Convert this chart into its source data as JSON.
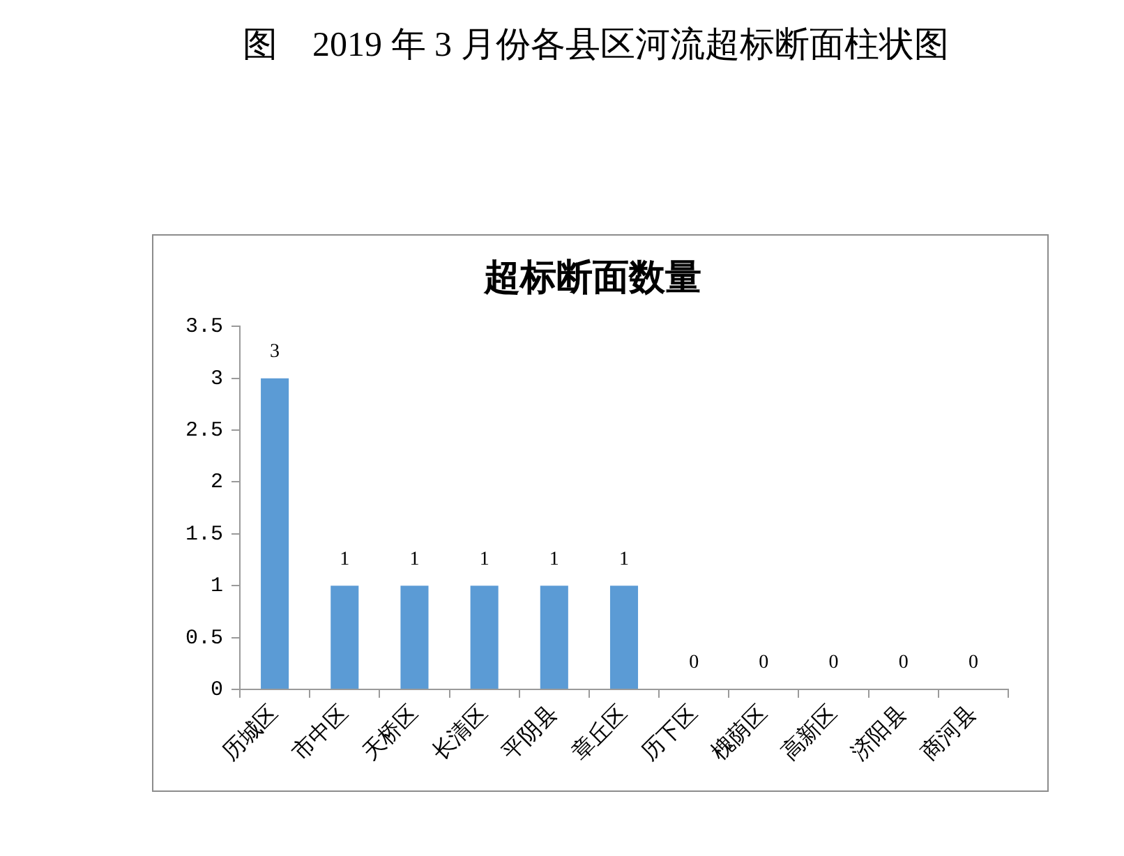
{
  "chart_data": {
    "type": "bar",
    "title": "超标断面数量",
    "annotations": [
      "图　2019 年 3 月份各县区河流超标断面柱状图"
    ],
    "categories": [
      "历城区",
      "市中区",
      "天桥区",
      "长清区",
      "平阴县",
      "章丘区",
      "历下区",
      "槐荫区",
      "高新区",
      "济阳县",
      "商河县"
    ],
    "values": [
      3,
      1,
      1,
      1,
      1,
      1,
      0,
      0,
      0,
      0,
      0
    ],
    "color": "#5b9bd5",
    "ylim": [
      0,
      3.5
    ],
    "yticks": [
      0,
      0.5,
      1,
      1.5,
      2,
      2.5,
      3,
      3.5
    ],
    "data_labels": true
  }
}
